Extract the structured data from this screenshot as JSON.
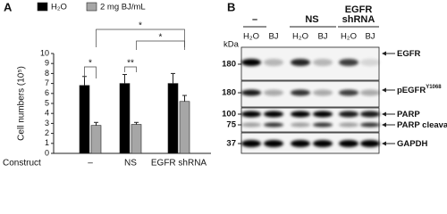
{
  "panel_labels": [
    "A",
    "B"
  ],
  "chart_data": {
    "type": "bar",
    "y_label": "Cell numbers (10⁵)",
    "x_label": "Construct",
    "categories": [
      "–",
      "NS",
      "EGFR shRNA"
    ],
    "series": [
      {
        "name": "H₂O",
        "color": "#000000",
        "values": [
          6.8,
          7.0,
          7.0
        ],
        "errors": [
          0.9,
          0.9,
          1.0
        ]
      },
      {
        "name": "2 mg BJ/mL",
        "color": "#a6a6a6",
        "values": [
          2.8,
          2.9,
          5.2
        ],
        "errors": [
          0.3,
          0.2,
          0.6
        ]
      }
    ],
    "ylim": [
      0,
      10
    ],
    "yticks": [
      0,
      1,
      2,
      3,
      4,
      5,
      6,
      7,
      8,
      9,
      10
    ],
    "annotations": [
      {
        "label": "*"
      },
      {
        "label": "*"
      },
      {
        "label": "*"
      },
      {
        "label": "**"
      }
    ]
  },
  "blot": {
    "groups": [
      "–",
      "NS",
      "EGFR shRNA"
    ],
    "lanes": [
      "H₂O",
      "BJ",
      "H₂O",
      "BJ",
      "H₂O",
      "BJ"
    ],
    "marker_unit": "kDa",
    "markers": [
      "180",
      "180",
      "100",
      "75",
      "37"
    ],
    "proteins": [
      {
        "label": "EGFR"
      },
      {
        "label": "pEGFR",
        "superscript": "Y1068"
      },
      {
        "label": "PARP"
      },
      {
        "label": "PARP cleavage"
      },
      {
        "label": "GAPDH"
      }
    ]
  }
}
